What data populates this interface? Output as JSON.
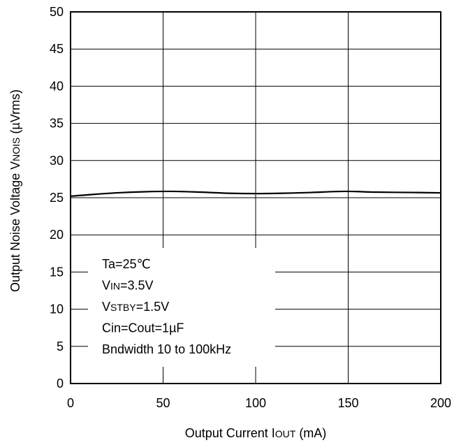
{
  "chart_data": {
    "type": "line",
    "title": "",
    "xlabel": {
      "main": "Output Current I",
      "sub": "OUT",
      "unit": " (mA)"
    },
    "ylabel": {
      "main": "Output Noise Voltage V",
      "sub": "NOIS",
      "unit": " (µVrms)"
    },
    "xlim": [
      0,
      200
    ],
    "ylim": [
      0,
      50
    ],
    "xticks": [
      0,
      50,
      100,
      150,
      200
    ],
    "yticks": [
      0,
      5,
      10,
      15,
      20,
      25,
      30,
      35,
      40,
      45,
      50
    ],
    "grid": true,
    "series": [
      {
        "color": "#000000",
        "x": [
          0,
          10,
          25,
          40,
          55,
          70,
          85,
          100,
          115,
          130,
          148,
          165,
          185,
          200
        ],
        "y": [
          25.2,
          25.4,
          25.65,
          25.8,
          25.85,
          25.75,
          25.6,
          25.55,
          25.6,
          25.7,
          25.85,
          25.75,
          25.7,
          25.65
        ]
      }
    ],
    "annotation": {
      "placement": "lower-left",
      "lines": [
        {
          "main": "Ta=25℃",
          "sub": ""
        },
        {
          "main": "V",
          "sub": "IN",
          "rest": "=3.5V"
        },
        {
          "main": "V",
          "sub": "STBY",
          "rest": "=1.5V"
        },
        {
          "main": "Cin=Cout=1µF",
          "sub": ""
        },
        {
          "main": "Bndwidth 10 to 100kHz",
          "sub": ""
        }
      ]
    }
  }
}
